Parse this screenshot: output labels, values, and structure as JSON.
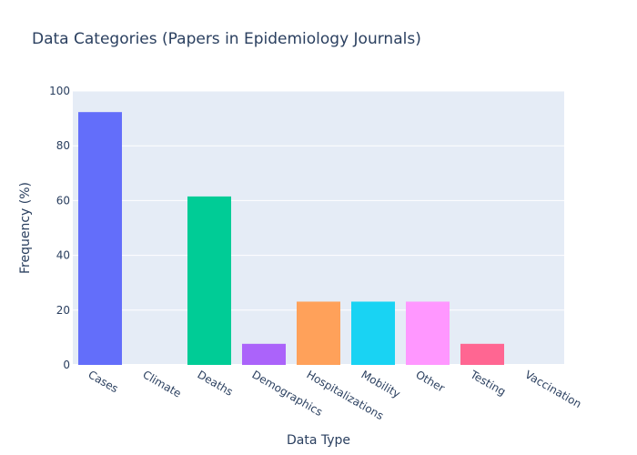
{
  "chart_data": {
    "type": "bar",
    "title": "Data Categories (Papers in Epidemiology Journals)",
    "xlabel": "Data Type",
    "ylabel": "Frequency (%)",
    "categories": [
      "Cases",
      "Climate",
      "Deaths",
      "Demographics",
      "Hospitalizations",
      "Mobility",
      "Other",
      "Testing",
      "Vaccination"
    ],
    "values": [
      92.3,
      0,
      61.5,
      7.7,
      23.1,
      23.1,
      23.1,
      7.7,
      0
    ],
    "colors": [
      "#636efa",
      "#ef553b",
      "#00cc96",
      "#ab63fa",
      "#ffa15a",
      "#19d3f3",
      "#ff97ff",
      "#ff6692",
      "#b6e880"
    ],
    "ylim": [
      0,
      100
    ],
    "yticks": [
      0,
      20,
      40,
      60,
      80,
      100
    ],
    "grid": true,
    "legend": "none",
    "plot_background": "#e5ecf6"
  }
}
